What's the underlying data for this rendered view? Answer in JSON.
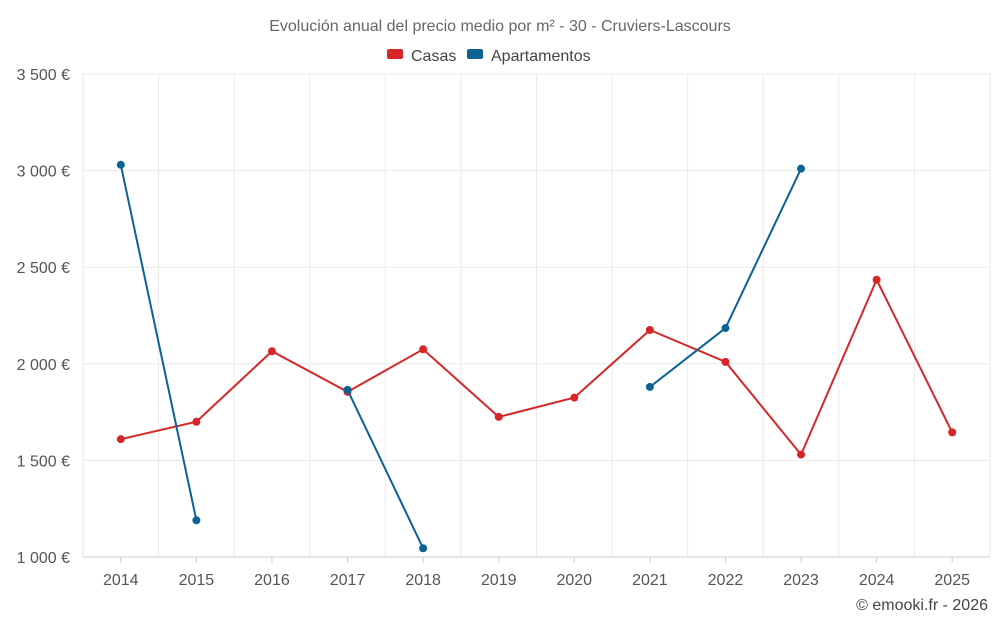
{
  "chart_data": {
    "type": "line",
    "title": "Evolución anual del precio medio por m² - 30 - Cruviers-Lascours",
    "categories": [
      "2014",
      "2015",
      "2016",
      "2017",
      "2018",
      "2019",
      "2020",
      "2021",
      "2022",
      "2023",
      "2024",
      "2025"
    ],
    "ylim": [
      1000,
      3500
    ],
    "yticks": [
      1000,
      1500,
      2000,
      2500,
      3000,
      3500
    ],
    "ytick_labels": [
      "1 000 €",
      "1 500 €",
      "2 000 €",
      "2 500 €",
      "3 000 €",
      "3 500 €"
    ],
    "xlabel": "",
    "ylabel": "",
    "grid": true,
    "legend_position": "top-center",
    "series": [
      {
        "name": "Casas",
        "color": "#d62728",
        "values": [
          1610,
          1700,
          2065,
          1855,
          2075,
          1725,
          1825,
          2175,
          2010,
          1530,
          2435,
          1645
        ]
      },
      {
        "name": "Apartamentos",
        "color": "#0b6394",
        "values": [
          3030,
          1190,
          null,
          1865,
          1045,
          null,
          null,
          1880,
          2185,
          3010,
          null,
          null
        ]
      }
    ],
    "credit": "© emooki.fr - 2026"
  }
}
